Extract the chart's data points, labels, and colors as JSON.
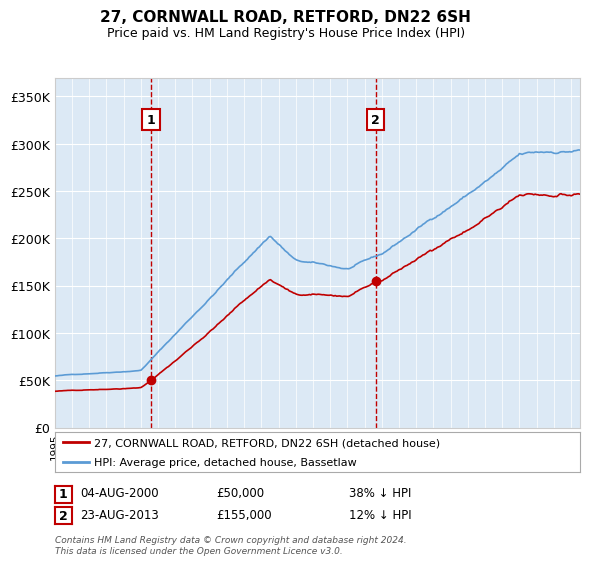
{
  "title": "27, CORNWALL ROAD, RETFORD, DN22 6SH",
  "subtitle": "Price paid vs. HM Land Registry's House Price Index (HPI)",
  "background_color": "#ffffff",
  "plot_bg_color": "#dce9f5",
  "grid_color": "#ffffff",
  "sale1": {
    "price": 50000,
    "label": "1",
    "hpi_diff": "38% ↓ HPI",
    "display_date": "04-AUG-2000"
  },
  "sale2": {
    "price": 155000,
    "label": "2",
    "hpi_diff": "12% ↓ HPI",
    "display_date": "23-AUG-2013"
  },
  "legend_entry1": "27, CORNWALL ROAD, RETFORD, DN22 6SH (detached house)",
  "legend_entry2": "HPI: Average price, detached house, Bassetlaw",
  "footer": "Contains HM Land Registry data © Crown copyright and database right 2024.\nThis data is licensed under the Open Government Licence v3.0.",
  "yticks": [
    0,
    50000,
    100000,
    150000,
    200000,
    250000,
    300000,
    350000
  ],
  "ylim": [
    0,
    370000
  ],
  "xlim_start": 1995.0,
  "xlim_end": 2025.5,
  "sale1_x": 2000.583,
  "sale2_x": 2013.638,
  "hpi_color": "#5b9bd5",
  "prop_color": "#c00000"
}
